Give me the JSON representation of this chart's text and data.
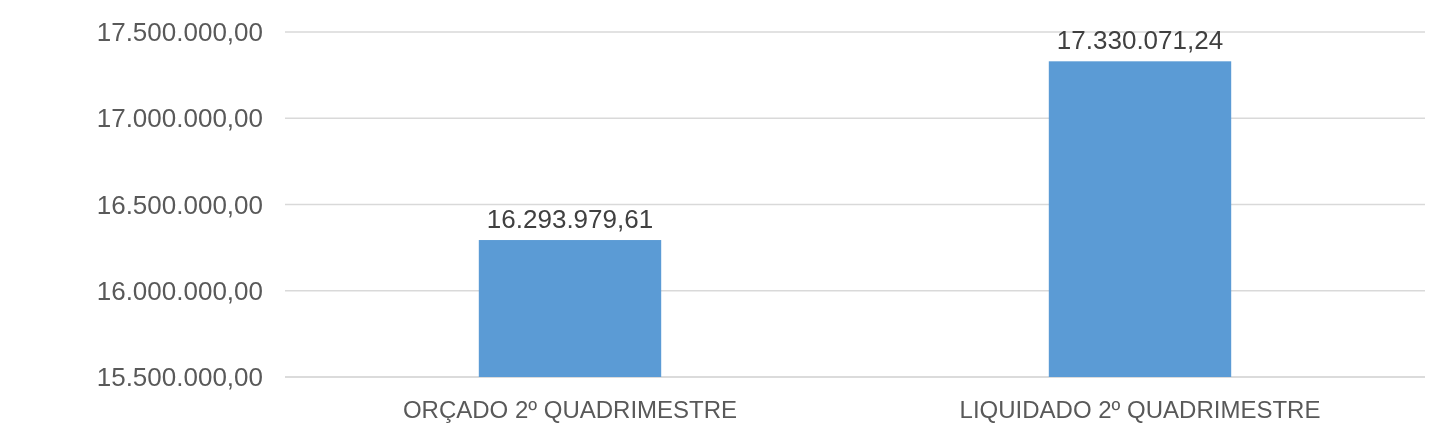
{
  "chart_data": {
    "type": "bar",
    "categories": [
      "ORÇADO 2º QUADRIMESTRE",
      "LIQUIDADO 2º QUADRIMESTRE"
    ],
    "values": [
      16293979.61,
      17330071.24
    ],
    "value_labels": [
      "16.293.979,61",
      "17.330.071,24"
    ],
    "color": "#5b9bd5",
    "ylim": [
      15500000,
      17500000
    ],
    "yticks": [
      {
        "value": 15500000,
        "label": "15.500.000,00"
      },
      {
        "value": 16000000,
        "label": "16.000.000,00"
      },
      {
        "value": 16500000,
        "label": "16.500.000,00"
      },
      {
        "value": 17000000,
        "label": "17.000.000,00"
      },
      {
        "value": 17500000,
        "label": "17.500.000,00"
      }
    ],
    "grid": "y"
  }
}
